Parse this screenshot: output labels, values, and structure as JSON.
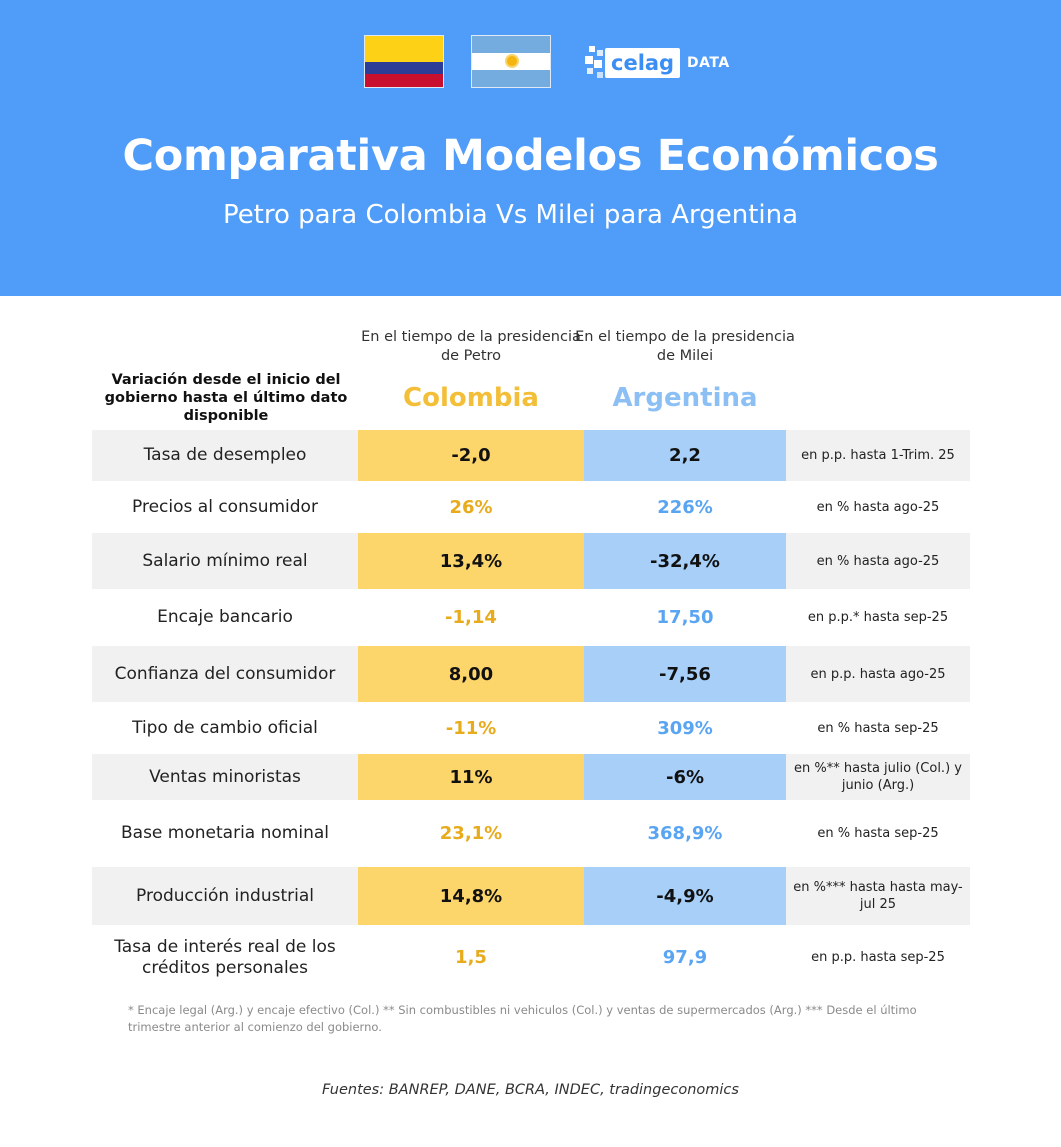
{
  "header": {
    "brand_word": "celag",
    "brand_suffix": "DATA",
    "title": "Comparativa Modelos Económicos",
    "subtitle": "Petro para Colombia Vs Milei para Argentina",
    "colors": {
      "background": "#4f9cf9",
      "colombia_accent": "#fdd66b",
      "argentina_accent": "#a7cff8"
    }
  },
  "columns": {
    "label_header": "Variación desde el inicio del gobierno hasta el último dato disponible",
    "colombia_sub": "En el tiempo de la presidencia de Petro",
    "colombia_name": "Colombia",
    "argentina_sub": "En el tiempo de la presidencia de Milei",
    "argentina_name": "Argentina"
  },
  "rows": [
    {
      "label": "Tasa de desempleo",
      "colombia": "-2,0",
      "argentina": "2,2",
      "note": "en p.p. hasta 1-Trim. 25"
    },
    {
      "label": "Precios al consumidor",
      "colombia": "26%",
      "argentina": "226%",
      "note": "en % hasta ago-25"
    },
    {
      "label": "Salario mínimo real",
      "colombia": "13,4%",
      "argentina": "-32,4%",
      "note": "en % hasta ago-25"
    },
    {
      "label": "Encaje bancario",
      "colombia": "-1,14",
      "argentina": "17,50",
      "note": "en p.p.* hasta sep-25"
    },
    {
      "label": "Confianza del consumidor",
      "colombia": "8,00",
      "argentina": "-7,56",
      "note": "en p.p. hasta ago-25"
    },
    {
      "label": "Tipo de cambio oficial",
      "colombia": "-11%",
      "argentina": "309%",
      "note": "en % hasta sep-25"
    },
    {
      "label": "Ventas minoristas",
      "colombia": "11%",
      "argentina": "-6%",
      "note": "en %** hasta julio (Col.) y junio (Arg.)"
    },
    {
      "label": "Base monetaria nominal",
      "colombia": "23,1%",
      "argentina": "368,9%",
      "note": "en % hasta sep-25"
    },
    {
      "label": "Producción industrial",
      "colombia": "14,8%",
      "argentina": "-4,9%",
      "note": "en %*** hasta hasta may-jul  25"
    },
    {
      "label": "Tasa de interés real de los créditos personales",
      "colombia": "1,5",
      "argentina": "97,9",
      "note": "en p.p. hasta sep-25"
    }
  ],
  "footnote": "* Encaje legal (Arg.) y encaje efectivo (Col.) ** Sin combustibles ni vehiculos (Col.) y ventas de supermercados (Arg.) *** Desde el último trimestre anterior al comienzo del gobierno.",
  "sources": "Fuentes:  BANREP, DANE, BCRA, INDEC, tradingeconomics"
}
